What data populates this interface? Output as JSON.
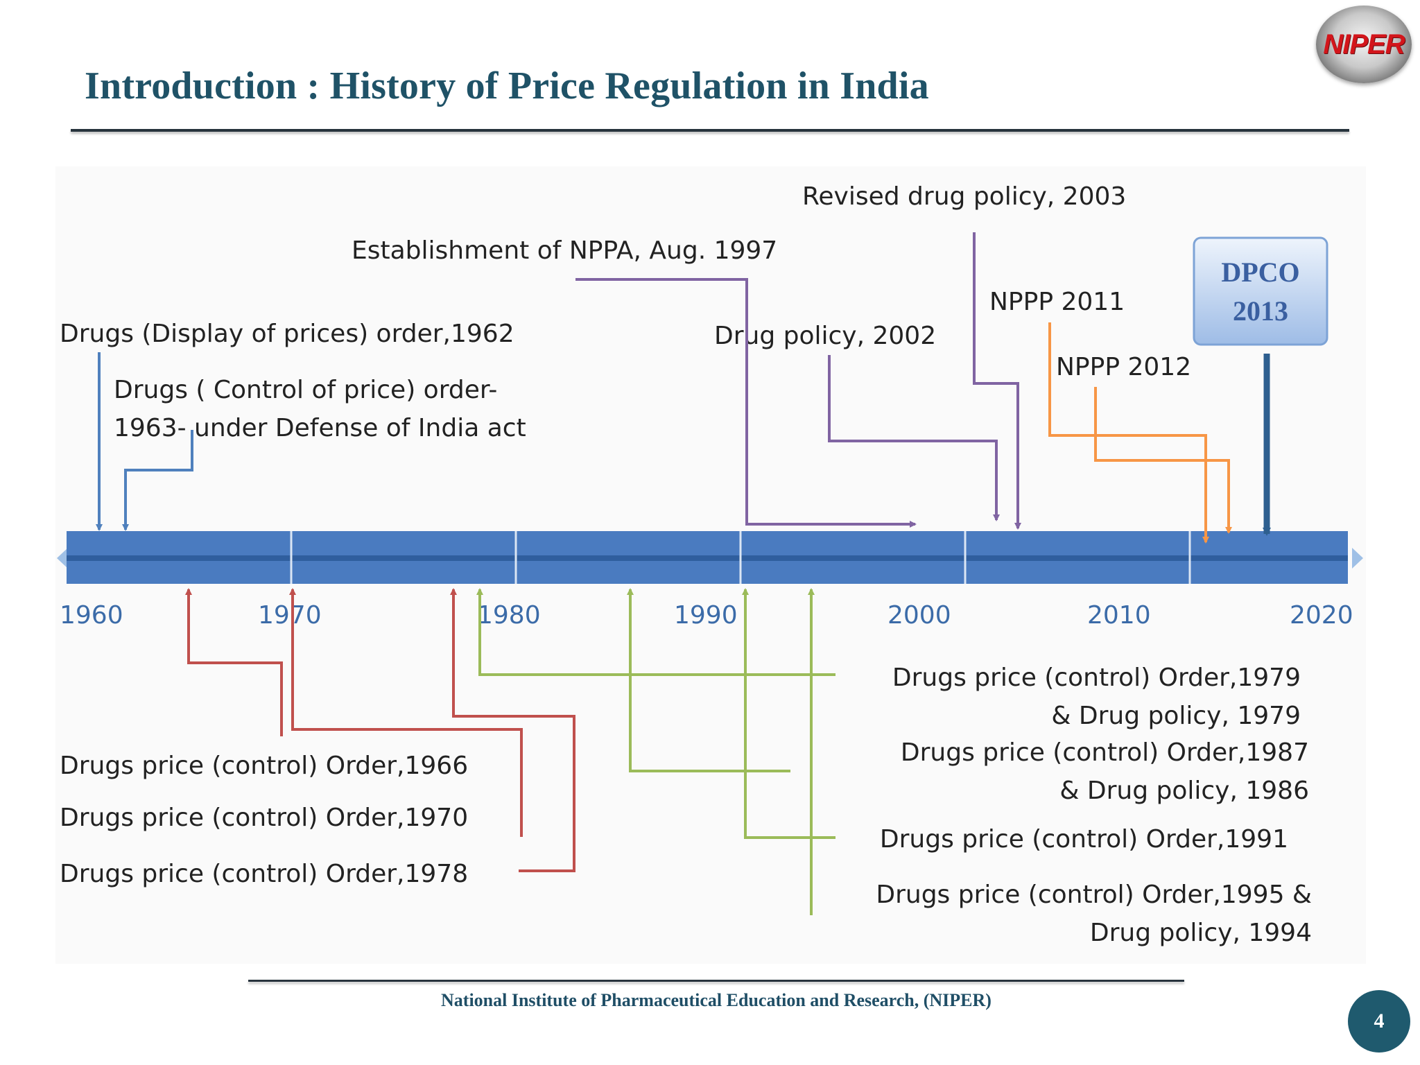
{
  "slide": {
    "title": "Introduction : History of Price Regulation in India",
    "logo_text": "NIPER",
    "footer": "National Institute of Pharmaceutical Education and Research, (NIPER)",
    "page_number": "4"
  },
  "timeline": {
    "years": [
      "1960",
      "1970",
      "1980",
      "1990",
      "2000",
      "2010",
      "2020"
    ],
    "above_events": [
      {
        "label": "Drugs (Display of prices) order,1962"
      },
      {
        "label_line1": "Drugs ( Control of price) order-",
        "label_line2": "1963- under Defense of India act"
      },
      {
        "label": "Establishment of NPPA, Aug. 1997"
      },
      {
        "label": "Drug policy, 2002"
      },
      {
        "label": "Revised drug policy, 2003"
      },
      {
        "label": "NPPP 2011"
      },
      {
        "label": "NPPP 2012"
      },
      {
        "label_line1": "DPCO",
        "label_line2": "2013"
      }
    ],
    "below_events": [
      {
        "label": "Drugs price (control) Order,1966"
      },
      {
        "label": "Drugs price (control) Order,1970"
      },
      {
        "label": "Drugs price (control) Order,1978"
      },
      {
        "label_line1": "Drugs price (control) Order,1979",
        "label_line2": "& Drug policy, 1979"
      },
      {
        "label_line1": "Drugs price (control) Order,1987",
        "label_line2": "& Drug policy, 1986"
      },
      {
        "label": "Drugs price (control) Order,1991"
      },
      {
        "label_line1": "Drugs price (control) Order,1995 &",
        "label_line2": "Drug policy, 1994"
      }
    ]
  },
  "colors": {
    "title": "#1f5267",
    "timeline_bar": "#4a7bc0",
    "timeline_bar_dark": "#2f5e9e",
    "connector_blue": "#4f80bd",
    "connector_purple": "#8064a2",
    "connector_orange": "#f79646",
    "connector_red": "#c0504d",
    "connector_green": "#9bbb59",
    "dpco_arrow": "#2e5f8f"
  }
}
